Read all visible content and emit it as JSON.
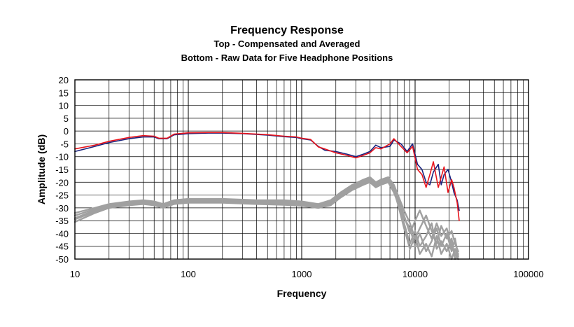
{
  "chart_data": {
    "type": "line",
    "title": "Frequency Response",
    "subtitles": [
      "Top -  Compensated and Averaged",
      "Bottom - Raw Data for Five Headphone Positions"
    ],
    "xlabel": "Frequency",
    "ylabel": "Amplitude (dB)",
    "x_scale": "log",
    "xlim": [
      10,
      100000
    ],
    "ylim": [
      -50,
      20
    ],
    "x_ticks": [
      10,
      100,
      1000,
      10000,
      100000
    ],
    "x_tick_labels": [
      "10",
      "100",
      "1000",
      "10000",
      "100000"
    ],
    "y_ticks": [
      20,
      15,
      10,
      5,
      0,
      -5,
      -10,
      -15,
      -20,
      -25,
      -30,
      -35,
      -40,
      -45,
      -50
    ],
    "y_tick_labels": [
      "20",
      "15",
      "10",
      "5",
      "0",
      "-5",
      "-10",
      "-15",
      "-20",
      "-25",
      "-30",
      "-35",
      "-40",
      "-45",
      "-50"
    ],
    "grid": true,
    "legend": "none",
    "colors": {
      "compensated_a": "#1a237e",
      "compensated_b": "#e8141c",
      "raw": "#a0a0a0"
    },
    "series": [
      {
        "color": "#1a237e",
        "points": [
          [
            10,
            -8
          ],
          [
            15,
            -6
          ],
          [
            20,
            -4.5
          ],
          [
            30,
            -3
          ],
          [
            40,
            -2.3
          ],
          [
            50,
            -2.3
          ],
          [
            55,
            -3
          ],
          [
            65,
            -3
          ],
          [
            75,
            -1.5
          ],
          [
            100,
            -1
          ],
          [
            150,
            -0.8
          ],
          [
            200,
            -0.8
          ],
          [
            300,
            -1
          ],
          [
            500,
            -1.6
          ],
          [
            700,
            -2.2
          ],
          [
            900,
            -2.5
          ],
          [
            1000,
            -3
          ],
          [
            1200,
            -3.5
          ],
          [
            1400,
            -6
          ],
          [
            1600,
            -7.5
          ],
          [
            2000,
            -8
          ],
          [
            2500,
            -9
          ],
          [
            3000,
            -10
          ],
          [
            3500,
            -9
          ],
          [
            4000,
            -8
          ],
          [
            4500,
            -5.5
          ],
          [
            5000,
            -6.5
          ],
          [
            6000,
            -6
          ],
          [
            6500,
            -3.5
          ],
          [
            7500,
            -5
          ],
          [
            8500,
            -8
          ],
          [
            9500,
            -5
          ],
          [
            10500,
            -13
          ],
          [
            11500,
            -15
          ],
          [
            12500,
            -20
          ],
          [
            13500,
            -21
          ],
          [
            14500,
            -16
          ],
          [
            16000,
            -13
          ],
          [
            17000,
            -21
          ],
          [
            18000,
            -17
          ],
          [
            19500,
            -15
          ],
          [
            21000,
            -20
          ],
          [
            22000,
            -24
          ],
          [
            23500,
            -27
          ],
          [
            24500,
            -31
          ]
        ]
      },
      {
        "color": "#e8141c",
        "points": [
          [
            10,
            -7
          ],
          [
            15,
            -5.5
          ],
          [
            20,
            -4
          ],
          [
            30,
            -2.5
          ],
          [
            40,
            -1.8
          ],
          [
            50,
            -2
          ],
          [
            55,
            -2.8
          ],
          [
            65,
            -2.8
          ],
          [
            75,
            -1.2
          ],
          [
            100,
            -0.7
          ],
          [
            150,
            -0.6
          ],
          [
            200,
            -0.6
          ],
          [
            300,
            -0.9
          ],
          [
            500,
            -1.4
          ],
          [
            700,
            -2
          ],
          [
            900,
            -2.3
          ],
          [
            1000,
            -2.8
          ],
          [
            1200,
            -3.3
          ],
          [
            1400,
            -6.2
          ],
          [
            1600,
            -7
          ],
          [
            2000,
            -8.5
          ],
          [
            2500,
            -9.5
          ],
          [
            3000,
            -10.5
          ],
          [
            3500,
            -9.5
          ],
          [
            4000,
            -8.5
          ],
          [
            4500,
            -6.5
          ],
          [
            5000,
            -7
          ],
          [
            6000,
            -5
          ],
          [
            6500,
            -3
          ],
          [
            7500,
            -6
          ],
          [
            8500,
            -8.5
          ],
          [
            9500,
            -6
          ],
          [
            10500,
            -15
          ],
          [
            11500,
            -17
          ],
          [
            12500,
            -22
          ],
          [
            13500,
            -17
          ],
          [
            14500,
            -12
          ],
          [
            16000,
            -22
          ],
          [
            17000,
            -18
          ],
          [
            18000,
            -14
          ],
          [
            19500,
            -24
          ],
          [
            21000,
            -19
          ],
          [
            22000,
            -22
          ],
          [
            23500,
            -28
          ],
          [
            24500,
            -35
          ]
        ]
      },
      {
        "color": "#a0a0a0",
        "points": [
          [
            10,
            -34
          ],
          [
            15,
            -31
          ],
          [
            20,
            -29.5
          ],
          [
            30,
            -28.5
          ],
          [
            40,
            -28
          ],
          [
            50,
            -28.5
          ],
          [
            60,
            -29.5
          ],
          [
            75,
            -28
          ],
          [
            100,
            -27.5
          ],
          [
            200,
            -27.5
          ],
          [
            400,
            -28
          ],
          [
            700,
            -28
          ],
          [
            1000,
            -28.5
          ],
          [
            1400,
            -29.5
          ],
          [
            1800,
            -28
          ],
          [
            2200,
            -25
          ],
          [
            2800,
            -22
          ],
          [
            3500,
            -20
          ],
          [
            4000,
            -19
          ],
          [
            4500,
            -21
          ],
          [
            5000,
            -20
          ],
          [
            5800,
            -19
          ],
          [
            6500,
            -22
          ],
          [
            7200,
            -27
          ],
          [
            8000,
            -33
          ],
          [
            9000,
            -40
          ],
          [
            10000,
            -35
          ],
          [
            11000,
            -31
          ],
          [
            12500,
            -37
          ],
          [
            14000,
            -42
          ],
          [
            15500,
            -36
          ],
          [
            17000,
            -41
          ],
          [
            19000,
            -38
          ],
          [
            21000,
            -45
          ],
          [
            22500,
            -48
          ],
          [
            24000,
            -50
          ]
        ]
      },
      {
        "color": "#a0a0a0",
        "points": [
          [
            10,
            -32
          ],
          [
            15,
            -30
          ],
          [
            20,
            -28.5
          ],
          [
            30,
            -27.5
          ],
          [
            40,
            -27
          ],
          [
            50,
            -27.5
          ],
          [
            60,
            -28.5
          ],
          [
            75,
            -27
          ],
          [
            100,
            -26.5
          ],
          [
            200,
            -26.5
          ],
          [
            400,
            -27
          ],
          [
            700,
            -27
          ],
          [
            1000,
            -27.5
          ],
          [
            1400,
            -28.5
          ],
          [
            1800,
            -27
          ],
          [
            2200,
            -24
          ],
          [
            2800,
            -21
          ],
          [
            3500,
            -19
          ],
          [
            4000,
            -18
          ],
          [
            4500,
            -20
          ],
          [
            5000,
            -19
          ],
          [
            5800,
            -18
          ],
          [
            6500,
            -21
          ],
          [
            7200,
            -26
          ],
          [
            8000,
            -31
          ],
          [
            9000,
            -36
          ],
          [
            10000,
            -42
          ],
          [
            11000,
            -38
          ],
          [
            12500,
            -33
          ],
          [
            14000,
            -39
          ],
          [
            15500,
            -44
          ],
          [
            17000,
            -37
          ],
          [
            19000,
            -42
          ],
          [
            21000,
            -39
          ],
          [
            22500,
            -44
          ],
          [
            24000,
            -47
          ]
        ]
      },
      {
        "color": "#a0a0a0",
        "points": [
          [
            10,
            -35.5
          ],
          [
            15,
            -32
          ],
          [
            20,
            -30
          ],
          [
            30,
            -29
          ],
          [
            40,
            -28.5
          ],
          [
            50,
            -29
          ],
          [
            60,
            -30
          ],
          [
            75,
            -28.5
          ],
          [
            100,
            -28
          ],
          [
            200,
            -28
          ],
          [
            400,
            -28.5
          ],
          [
            700,
            -28.8
          ],
          [
            1000,
            -29.2
          ],
          [
            1400,
            -30
          ],
          [
            1800,
            -29
          ],
          [
            2200,
            -26
          ],
          [
            2800,
            -23
          ],
          [
            3500,
            -21
          ],
          [
            4000,
            -20
          ],
          [
            4500,
            -22
          ],
          [
            5000,
            -21
          ],
          [
            5800,
            -20
          ],
          [
            6500,
            -24
          ],
          [
            7200,
            -29
          ],
          [
            8000,
            -36
          ],
          [
            9000,
            -44
          ],
          [
            10000,
            -39
          ],
          [
            11000,
            -45
          ],
          [
            12500,
            -41
          ],
          [
            14000,
            -36
          ],
          [
            15500,
            -46
          ],
          [
            17000,
            -43
          ],
          [
            19000,
            -47
          ],
          [
            21000,
            -42
          ],
          [
            22500,
            -50
          ],
          [
            24000,
            -48
          ]
        ]
      },
      {
        "color": "#a0a0a0",
        "points": [
          [
            10,
            -33
          ],
          [
            15,
            -30.5
          ],
          [
            20,
            -29
          ],
          [
            30,
            -28
          ],
          [
            40,
            -27.5
          ],
          [
            50,
            -28
          ],
          [
            60,
            -29
          ],
          [
            75,
            -27.5
          ],
          [
            100,
            -27
          ],
          [
            200,
            -27
          ],
          [
            400,
            -27.5
          ],
          [
            700,
            -27.5
          ],
          [
            1000,
            -28
          ],
          [
            1400,
            -29
          ],
          [
            1800,
            -27.5
          ],
          [
            2200,
            -24.5
          ],
          [
            2800,
            -21.5
          ],
          [
            3500,
            -19.5
          ],
          [
            4000,
            -18.5
          ],
          [
            4500,
            -20.5
          ],
          [
            5000,
            -19.5
          ],
          [
            5800,
            -18.5
          ],
          [
            6500,
            -22.5
          ],
          [
            7200,
            -28
          ],
          [
            8000,
            -34
          ],
          [
            9000,
            -38
          ],
          [
            10000,
            -45
          ],
          [
            11000,
            -40
          ],
          [
            12500,
            -47
          ],
          [
            14000,
            -43
          ],
          [
            15500,
            -38
          ],
          [
            17000,
            -45
          ],
          [
            19000,
            -40
          ],
          [
            21000,
            -47
          ],
          [
            22500,
            -42
          ],
          [
            24000,
            -49
          ]
        ]
      },
      {
        "color": "#a0a0a0",
        "points": [
          [
            10,
            -34.5
          ],
          [
            15,
            -31.5
          ],
          [
            20,
            -29.8
          ],
          [
            30,
            -28.8
          ],
          [
            40,
            -28.2
          ],
          [
            50,
            -28.8
          ],
          [
            60,
            -29.8
          ],
          [
            75,
            -28.2
          ],
          [
            100,
            -27.8
          ],
          [
            200,
            -27.8
          ],
          [
            400,
            -28.2
          ],
          [
            700,
            -28.5
          ],
          [
            1000,
            -29
          ],
          [
            1400,
            -29.8
          ],
          [
            1800,
            -28.5
          ],
          [
            2200,
            -25.5
          ],
          [
            2800,
            -22.5
          ],
          [
            3500,
            -20.5
          ],
          [
            4000,
            -19.5
          ],
          [
            4500,
            -21.5
          ],
          [
            5000,
            -20.5
          ],
          [
            5800,
            -19.5
          ],
          [
            6500,
            -23
          ],
          [
            7200,
            -30
          ],
          [
            8000,
            -38
          ],
          [
            9000,
            -46
          ],
          [
            10000,
            -41
          ],
          [
            11000,
            -48
          ],
          [
            12500,
            -44
          ],
          [
            14000,
            -49
          ],
          [
            15500,
            -41
          ],
          [
            17000,
            -48
          ],
          [
            19000,
            -44
          ],
          [
            21000,
            -50
          ],
          [
            22500,
            -46
          ],
          [
            24000,
            -50
          ]
        ]
      }
    ]
  }
}
